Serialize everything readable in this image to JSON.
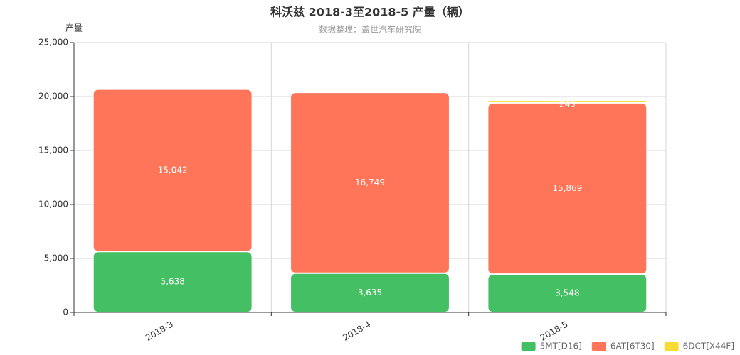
{
  "chart_data": {
    "type": "stacked_bar",
    "title": "科沃兹 2018-3至2018-5 产量（辆）",
    "subtitle": "数据整理：盖世汽车研究院",
    "y_label": "产量",
    "categories": [
      "2018-3",
      "2018-4",
      "2018-5"
    ],
    "series": [
      {
        "name": "5MT[D16]",
        "color": "#44bf63",
        "values": [
          5638,
          3635,
          3548
        ],
        "value_labels": [
          "5,638",
          "3,635",
          "3,548"
        ]
      },
      {
        "name": "6AT[6T30]",
        "color": "#fe755a",
        "values": [
          15042,
          16749,
          15869
        ],
        "value_labels": [
          "15,042",
          "16,749",
          "15,869"
        ]
      },
      {
        "name": "6DCT[X44F]",
        "color": "#f7dc34",
        "values": [
          null,
          null,
          245
        ],
        "value_labels": [
          null,
          null,
          "245"
        ]
      }
    ],
    "ylim": [
      0,
      25000
    ],
    "yticks": [
      {
        "value": 0,
        "label": "0"
      },
      {
        "value": 5000,
        "label": "5,000"
      },
      {
        "value": 10000,
        "label": "10,000"
      },
      {
        "value": 15000,
        "label": "15,000"
      },
      {
        "value": 20000,
        "label": "20,000"
      },
      {
        "value": 25000,
        "label": "25,000"
      }
    ],
    "grid": true,
    "legend": "bottom-right"
  }
}
